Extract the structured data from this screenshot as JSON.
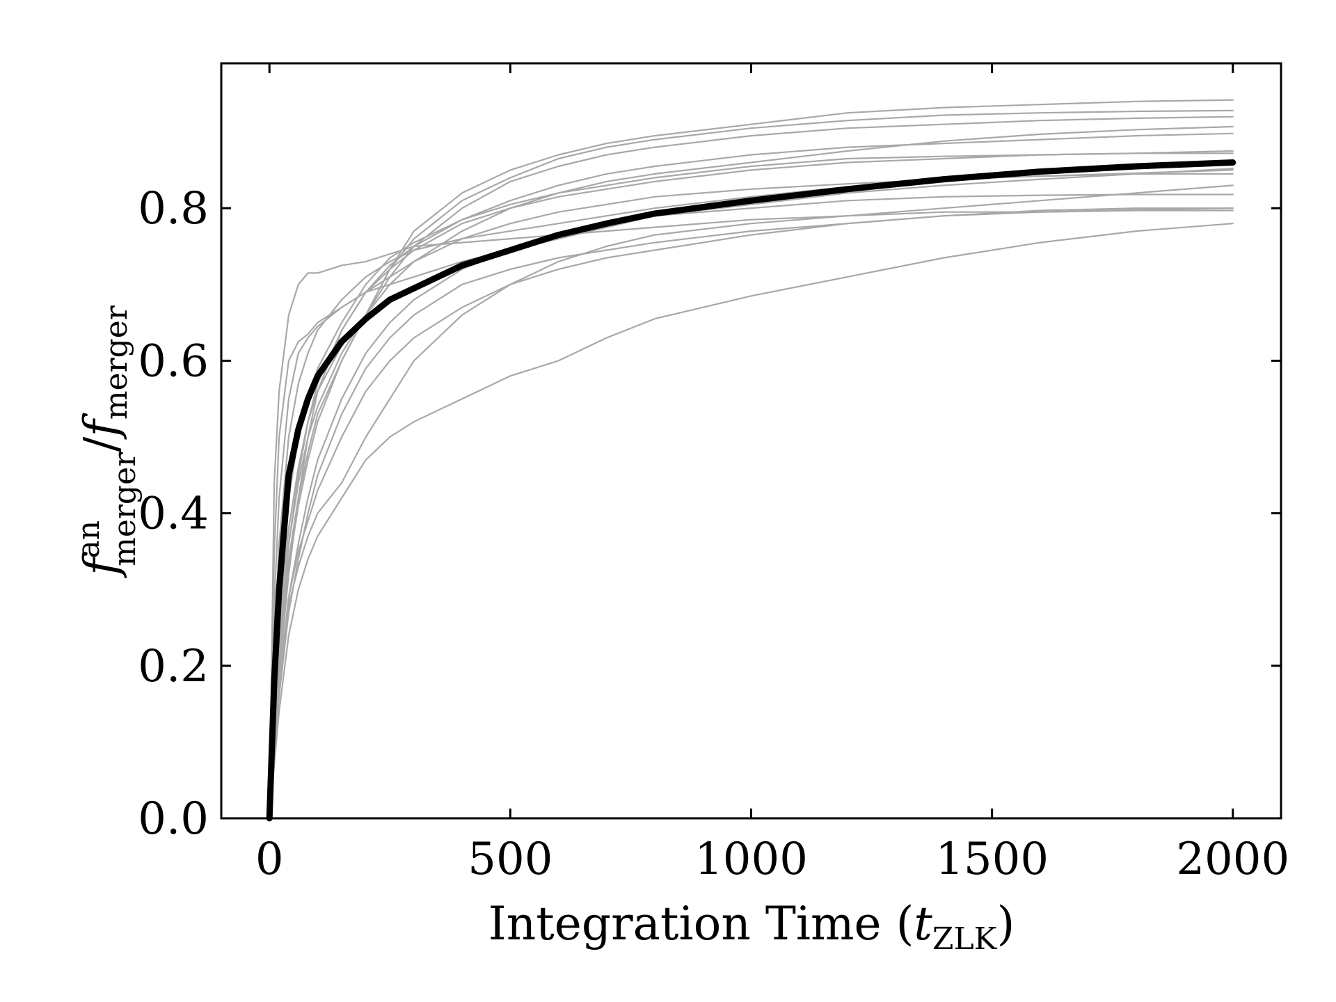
{
  "chart_data": {
    "type": "line",
    "xlabel": "Integration Time (t_ZLK)",
    "xlabel_main": "Integration Time (",
    "xlabel_var": "t",
    "xlabel_sub": "ZLK",
    "xlabel_close": ")",
    "ylabel_parts": {
      "f1": "f",
      "sup": "an",
      "sub1": "merger",
      "slash": "/",
      "f2": "f",
      "sub2": "merger"
    },
    "xlim": [
      -100,
      2100
    ],
    "ylim": [
      0.0,
      0.99
    ],
    "xticks": [
      0,
      500,
      1000,
      1500,
      2000
    ],
    "xtick_labels": [
      "0",
      "500",
      "1000",
      "1500",
      "2000"
    ],
    "yticks": [
      0.0,
      0.2,
      0.4,
      0.6,
      0.8
    ],
    "ytick_labels": [
      "0.0",
      "0.2",
      "0.4",
      "0.6",
      "0.8"
    ],
    "grid": false,
    "colors": {
      "individual": "#a8a8a8",
      "mean": "#000000"
    },
    "x": [
      0,
      10,
      20,
      40,
      60,
      80,
      100,
      150,
      200,
      250,
      300,
      400,
      500,
      600,
      700,
      800,
      1000,
      1200,
      1400,
      1600,
      1800,
      2000
    ],
    "series": [
      {
        "role": "mean",
        "values": [
          0.0,
          0.18,
          0.3,
          0.45,
          0.51,
          0.55,
          0.58,
          0.625,
          0.655,
          0.68,
          0.695,
          0.725,
          0.745,
          0.765,
          0.78,
          0.793,
          0.81,
          0.825,
          0.838,
          0.848,
          0.855,
          0.86
        ]
      },
      {
        "role": "individual",
        "values": [
          0.0,
          0.44,
          0.56,
          0.66,
          0.7,
          0.715,
          0.715,
          0.725,
          0.73,
          0.74,
          0.75,
          0.755,
          0.76,
          0.765,
          0.77,
          0.775,
          0.785,
          0.79,
          0.795,
          0.795,
          0.797,
          0.797
        ]
      },
      {
        "role": "individual",
        "values": [
          0.0,
          0.35,
          0.5,
          0.6,
          0.625,
          0.635,
          0.65,
          0.67,
          0.69,
          0.7,
          0.71,
          0.73,
          0.745,
          0.76,
          0.775,
          0.79,
          0.8,
          0.81,
          0.815,
          0.817,
          0.818,
          0.818
        ]
      },
      {
        "role": "individual",
        "values": [
          0.0,
          0.28,
          0.42,
          0.55,
          0.61,
          0.63,
          0.645,
          0.67,
          0.69,
          0.71,
          0.73,
          0.76,
          0.78,
          0.795,
          0.805,
          0.815,
          0.825,
          0.832,
          0.838,
          0.842,
          0.845,
          0.845
        ]
      },
      {
        "role": "individual",
        "values": [
          0.0,
          0.22,
          0.36,
          0.5,
          0.57,
          0.61,
          0.64,
          0.68,
          0.71,
          0.73,
          0.745,
          0.76,
          0.77,
          0.78,
          0.79,
          0.8,
          0.815,
          0.828,
          0.838,
          0.842,
          0.846,
          0.85
        ]
      },
      {
        "role": "individual",
        "values": [
          0.0,
          0.15,
          0.28,
          0.42,
          0.5,
          0.55,
          0.59,
          0.65,
          0.7,
          0.735,
          0.755,
          0.785,
          0.805,
          0.82,
          0.83,
          0.84,
          0.855,
          0.865,
          0.868,
          0.87,
          0.872,
          0.872
        ]
      },
      {
        "role": "individual",
        "values": [
          0.0,
          0.12,
          0.22,
          0.36,
          0.45,
          0.52,
          0.57,
          0.64,
          0.69,
          0.72,
          0.745,
          0.78,
          0.8,
          0.815,
          0.825,
          0.835,
          0.85,
          0.86,
          0.865,
          0.87,
          0.872,
          0.875
        ]
      },
      {
        "role": "individual",
        "values": [
          0.0,
          0.1,
          0.19,
          0.32,
          0.42,
          0.5,
          0.56,
          0.64,
          0.69,
          0.725,
          0.75,
          0.785,
          0.81,
          0.83,
          0.845,
          0.855,
          0.87,
          0.88,
          0.885,
          0.89,
          0.895,
          0.898
        ]
      },
      {
        "role": "individual",
        "values": [
          0.0,
          0.14,
          0.26,
          0.38,
          0.46,
          0.52,
          0.56,
          0.62,
          0.66,
          0.7,
          0.73,
          0.77,
          0.8,
          0.82,
          0.835,
          0.845,
          0.86,
          0.875,
          0.888,
          0.897,
          0.903,
          0.907
        ]
      },
      {
        "role": "individual",
        "values": [
          0.0,
          0.12,
          0.24,
          0.36,
          0.44,
          0.5,
          0.54,
          0.61,
          0.66,
          0.71,
          0.75,
          0.8,
          0.835,
          0.855,
          0.87,
          0.88,
          0.895,
          0.905,
          0.91,
          0.915,
          0.918,
          0.92
        ]
      },
      {
        "role": "individual",
        "values": [
          0.0,
          0.11,
          0.22,
          0.34,
          0.42,
          0.48,
          0.53,
          0.6,
          0.66,
          0.72,
          0.76,
          0.81,
          0.84,
          0.865,
          0.88,
          0.89,
          0.905,
          0.915,
          0.922,
          0.925,
          0.927,
          0.928
        ]
      },
      {
        "role": "individual",
        "values": [
          0.0,
          0.1,
          0.21,
          0.33,
          0.41,
          0.47,
          0.52,
          0.6,
          0.66,
          0.72,
          0.77,
          0.82,
          0.85,
          0.87,
          0.885,
          0.895,
          0.91,
          0.925,
          0.932,
          0.936,
          0.94,
          0.942
        ]
      },
      {
        "role": "individual",
        "values": [
          0.0,
          0.09,
          0.18,
          0.29,
          0.36,
          0.42,
          0.47,
          0.55,
          0.61,
          0.65,
          0.68,
          0.72,
          0.745,
          0.76,
          0.775,
          0.79,
          0.805,
          0.82,
          0.83,
          0.838,
          0.845,
          0.852
        ]
      },
      {
        "role": "individual",
        "values": [
          0.0,
          0.08,
          0.16,
          0.27,
          0.34,
          0.4,
          0.45,
          0.53,
          0.59,
          0.63,
          0.66,
          0.7,
          0.72,
          0.735,
          0.745,
          0.755,
          0.77,
          0.78,
          0.79,
          0.795,
          0.798,
          0.8
        ]
      },
      {
        "role": "individual",
        "values": [
          0.0,
          0.08,
          0.17,
          0.29,
          0.35,
          0.39,
          0.43,
          0.5,
          0.56,
          0.6,
          0.63,
          0.67,
          0.7,
          0.72,
          0.735,
          0.745,
          0.765,
          0.78,
          0.79,
          0.797,
          0.8,
          0.8
        ]
      },
      {
        "role": "individual",
        "values": [
          0.0,
          0.09,
          0.18,
          0.28,
          0.33,
          0.37,
          0.4,
          0.44,
          0.5,
          0.55,
          0.6,
          0.66,
          0.7,
          0.73,
          0.75,
          0.765,
          0.78,
          0.79,
          0.8,
          0.81,
          0.82,
          0.83
        ]
      },
      {
        "role": "individual",
        "values": [
          0.0,
          0.07,
          0.14,
          0.24,
          0.3,
          0.34,
          0.37,
          0.42,
          0.47,
          0.5,
          0.52,
          0.55,
          0.58,
          0.6,
          0.63,
          0.655,
          0.685,
          0.71,
          0.735,
          0.755,
          0.77,
          0.78
        ]
      }
    ]
  }
}
